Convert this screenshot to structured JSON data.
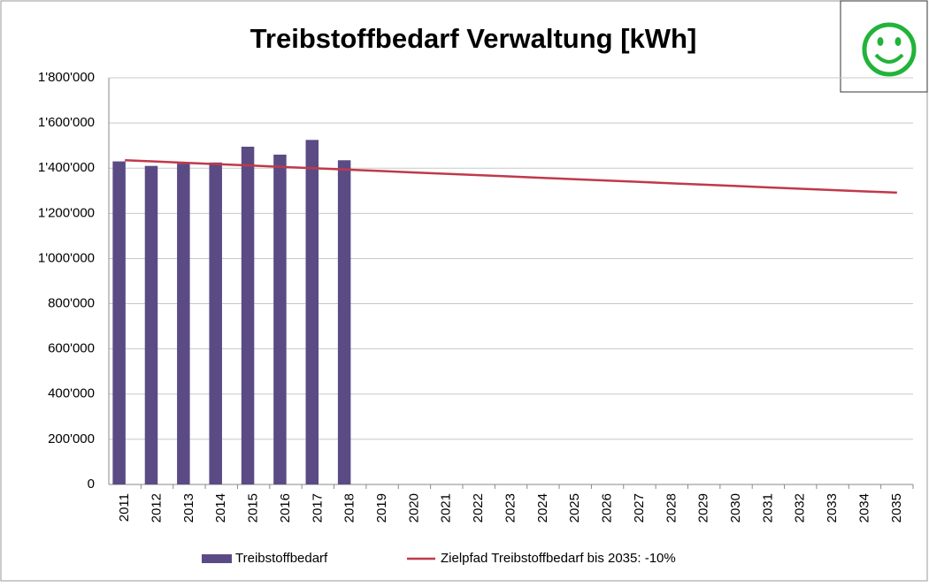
{
  "chart_data": {
    "type": "bar",
    "title": "Treibstoffbedarf Verwaltung [kWh]",
    "categories": [
      "2011",
      "2012",
      "2013",
      "2014",
      "2015",
      "2016",
      "2017",
      "2018",
      "2019",
      "2020",
      "2021",
      "2022",
      "2023",
      "2024",
      "2025",
      "2026",
      "2027",
      "2028",
      "2029",
      "2030",
      "2031",
      "2032",
      "2033",
      "2034",
      "2035"
    ],
    "series": [
      {
        "name": "Treibstoffbedarf",
        "type": "bar",
        "color": "#5b4b84",
        "values": [
          1430000,
          1410000,
          1420000,
          1425000,
          1495000,
          1460000,
          1525000,
          1435000,
          null,
          null,
          null,
          null,
          null,
          null,
          null,
          null,
          null,
          null,
          null,
          null,
          null,
          null,
          null,
          null,
          null
        ]
      },
      {
        "name": "Zielpfad Treibstoffbedarf bis 2035: -10%",
        "type": "line",
        "color": "#c0394b",
        "values": [
          1435000,
          1429000,
          1423000,
          1417000,
          1411000,
          1405000,
          1399000,
          1393000,
          1387000,
          1381000,
          1375000,
          1369000,
          1363000,
          1357000,
          1351000,
          1345000,
          1339000,
          1333000,
          1327000,
          1321000,
          1315000,
          1309000,
          1303000,
          1297000,
          1292000
        ]
      }
    ],
    "ylim": [
      0,
      1800000
    ],
    "yticks": [
      0,
      {
        "value": 200000,
        "label": "200'000"
      },
      {
        "value": 400000,
        "label": "400'000"
      },
      {
        "value": 600000,
        "label": "600'000"
      },
      {
        "value": 800000,
        "label": "800'000"
      },
      {
        "value": 1000000,
        "label": "1'000'000"
      },
      {
        "value": 1200000,
        "label": "1'200'000"
      },
      {
        "value": 1400000,
        "label": "1'400'000"
      },
      {
        "value": 1600000,
        "label": "1'600'000"
      },
      {
        "value": 1800000,
        "label": "1'800'000"
      }
    ],
    "grid": true,
    "legend": "bottom"
  }
}
